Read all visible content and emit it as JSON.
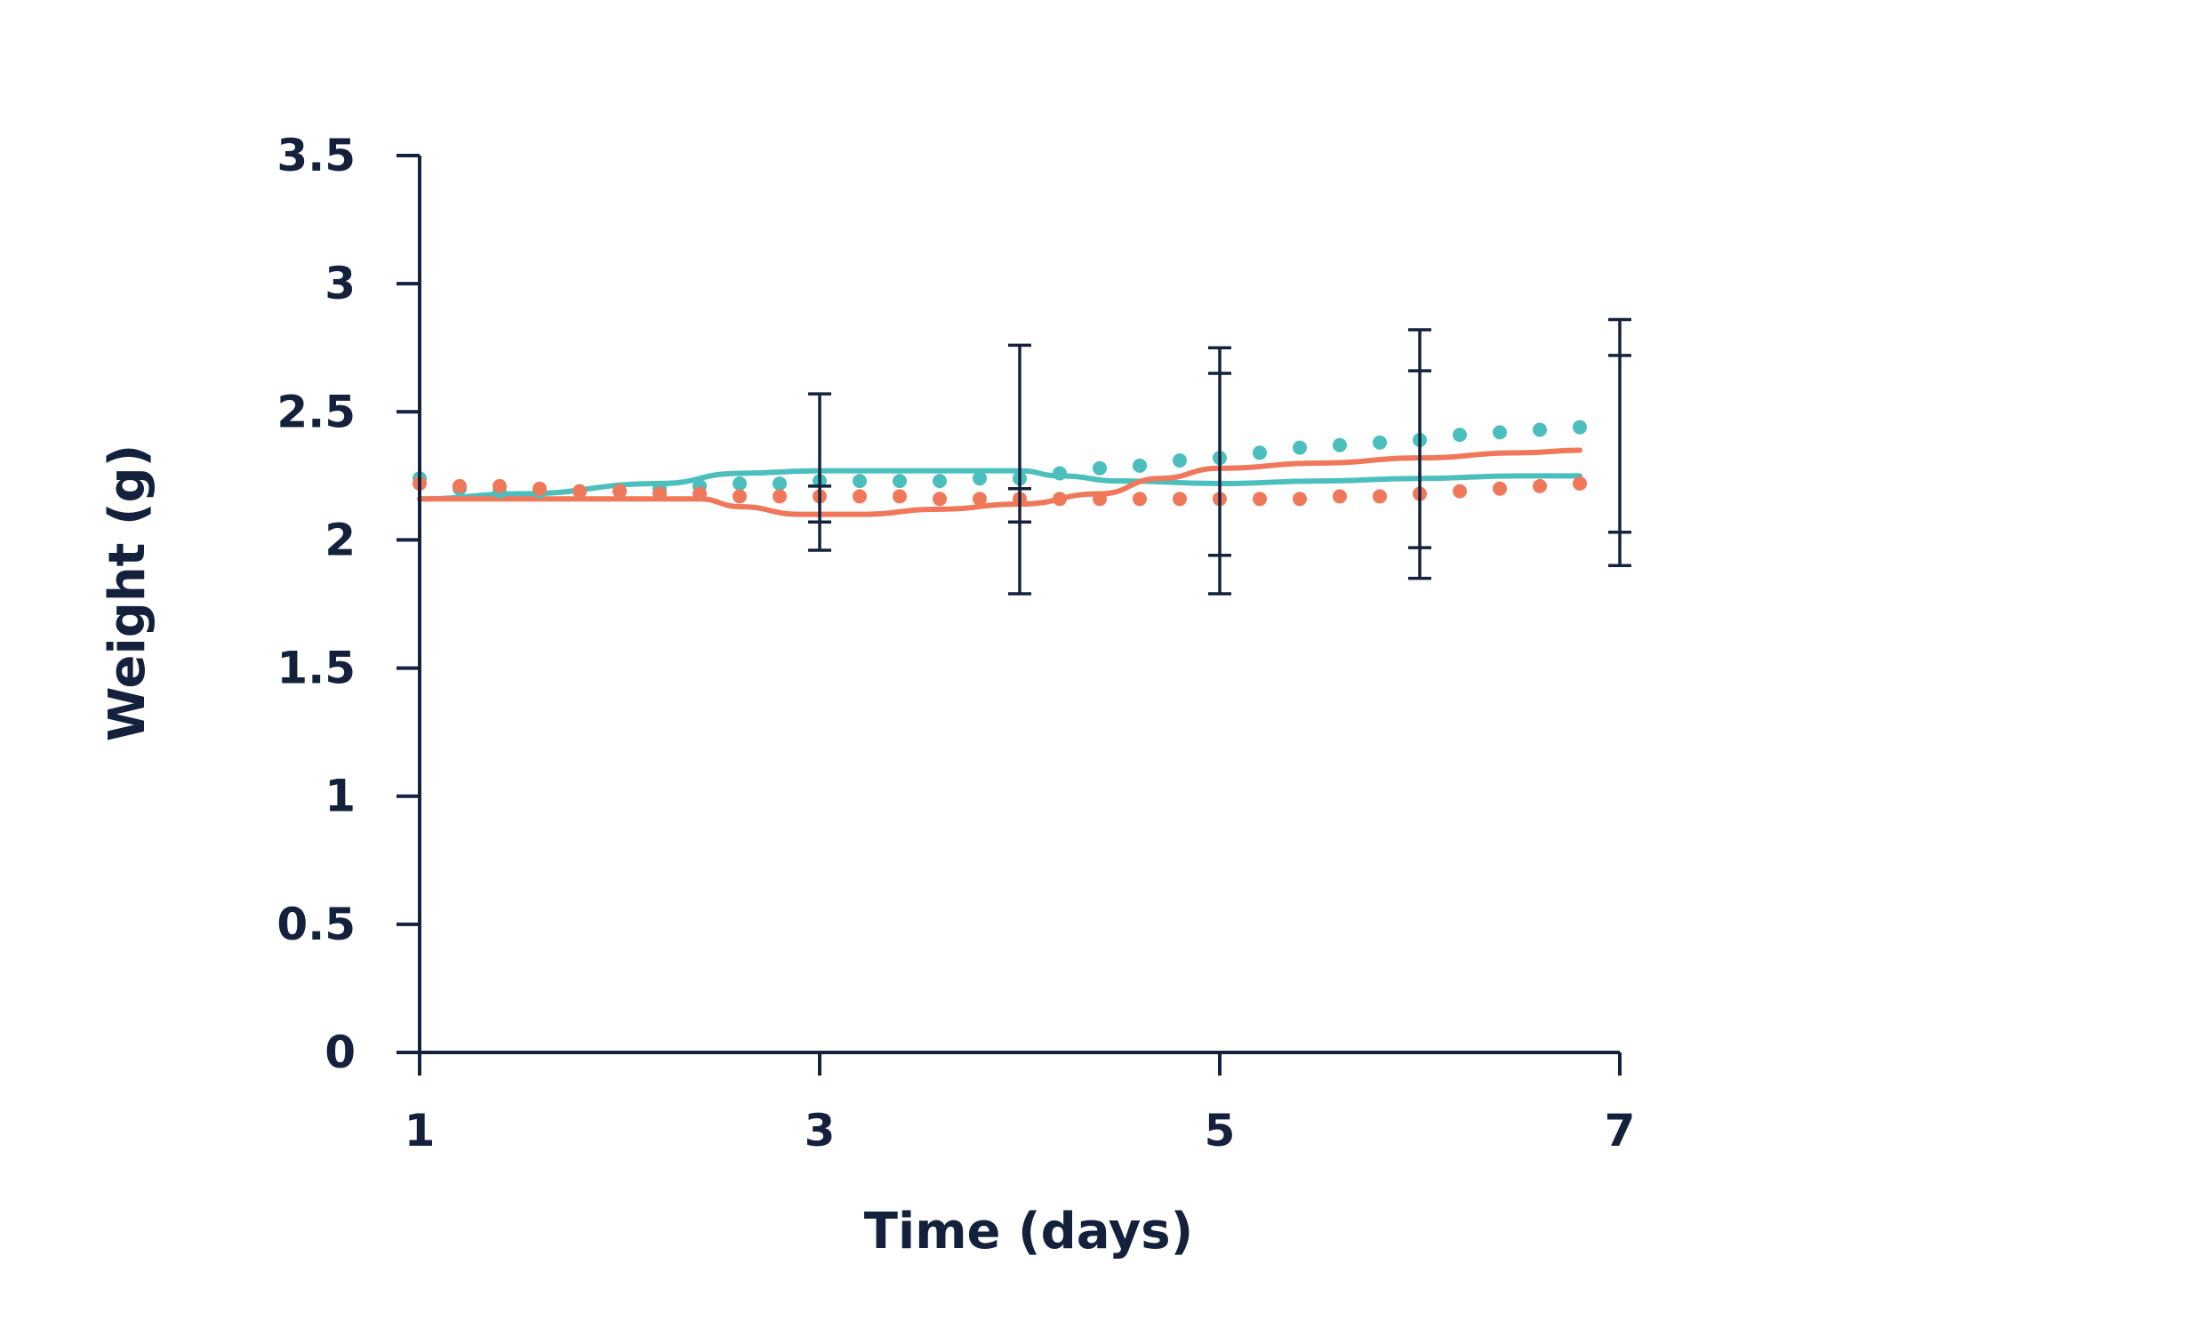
{
  "chart_data": {
    "type": "line",
    "xlabel": "Time (days)",
    "ylabel": "Weight (g)",
    "xlim": [
      1,
      7
    ],
    "ylim": [
      0,
      3.5
    ],
    "x_ticks": [
      "1",
      "3",
      "5",
      "7"
    ],
    "y_ticks": [
      "0",
      "0.5",
      "1",
      "1.5",
      "2",
      "2.5",
      "3",
      "3.5"
    ],
    "grid": false,
    "legend": "none",
    "series": [
      {
        "style": "solid",
        "color": "#4bbfbd",
        "points": [
          [
            1.0,
            2.16
          ],
          [
            1.5,
            2.18
          ],
          [
            2.2,
            2.22
          ],
          [
            2.6,
            2.26
          ],
          [
            3.0,
            2.27
          ],
          [
            3.5,
            2.27
          ],
          [
            4.0,
            2.27
          ],
          [
            4.2,
            2.25
          ],
          [
            4.5,
            2.23
          ],
          [
            5.0,
            2.22
          ],
          [
            5.5,
            2.23
          ],
          [
            6.0,
            2.24
          ],
          [
            6.5,
            2.25
          ],
          [
            6.8,
            2.25
          ]
        ]
      },
      {
        "style": "solid",
        "color": "#f0785a",
        "points": [
          [
            1.0,
            2.16
          ],
          [
            1.5,
            2.16
          ],
          [
            2.0,
            2.16
          ],
          [
            2.4,
            2.16
          ],
          [
            2.6,
            2.13
          ],
          [
            2.9,
            2.1
          ],
          [
            3.2,
            2.1
          ],
          [
            3.6,
            2.12
          ],
          [
            4.0,
            2.14
          ],
          [
            4.4,
            2.18
          ],
          [
            4.7,
            2.24
          ],
          [
            5.0,
            2.28
          ],
          [
            5.5,
            2.3
          ],
          [
            6.0,
            2.32
          ],
          [
            6.5,
            2.34
          ],
          [
            6.8,
            2.35
          ]
        ]
      },
      {
        "style": "dotted",
        "color": "#4bbfbd",
        "points": [
          [
            1.0,
            2.24
          ],
          [
            1.2,
            2.2
          ],
          [
            1.4,
            2.19
          ],
          [
            1.6,
            2.19
          ],
          [
            1.8,
            2.19
          ],
          [
            2.0,
            2.19
          ],
          [
            2.2,
            2.2
          ],
          [
            2.4,
            2.21
          ],
          [
            2.6,
            2.22
          ],
          [
            2.8,
            2.22
          ],
          [
            3.0,
            2.23
          ],
          [
            3.2,
            2.23
          ],
          [
            3.4,
            2.23
          ],
          [
            3.6,
            2.23
          ],
          [
            3.8,
            2.24
          ],
          [
            4.0,
            2.24
          ],
          [
            4.2,
            2.26
          ],
          [
            4.4,
            2.28
          ],
          [
            4.6,
            2.29
          ],
          [
            4.8,
            2.31
          ],
          [
            5.0,
            2.32
          ],
          [
            5.2,
            2.34
          ],
          [
            5.4,
            2.36
          ],
          [
            5.6,
            2.37
          ],
          [
            5.8,
            2.38
          ],
          [
            6.0,
            2.39
          ],
          [
            6.2,
            2.41
          ],
          [
            6.4,
            2.42
          ],
          [
            6.6,
            2.43
          ],
          [
            6.8,
            2.44
          ]
        ]
      },
      {
        "style": "dotted",
        "color": "#f0785a",
        "points": [
          [
            1.0,
            2.22
          ],
          [
            1.2,
            2.21
          ],
          [
            1.4,
            2.21
          ],
          [
            1.6,
            2.2
          ],
          [
            1.8,
            2.19
          ],
          [
            2.0,
            2.19
          ],
          [
            2.2,
            2.18
          ],
          [
            2.4,
            2.18
          ],
          [
            2.6,
            2.17
          ],
          [
            2.8,
            2.17
          ],
          [
            3.0,
            2.17
          ],
          [
            3.2,
            2.17
          ],
          [
            3.4,
            2.17
          ],
          [
            3.6,
            2.16
          ],
          [
            3.8,
            2.16
          ],
          [
            4.0,
            2.16
          ],
          [
            4.2,
            2.16
          ],
          [
            4.4,
            2.16
          ],
          [
            4.6,
            2.16
          ],
          [
            4.8,
            2.16
          ],
          [
            5.0,
            2.16
          ],
          [
            5.2,
            2.16
          ],
          [
            5.4,
            2.16
          ],
          [
            5.6,
            2.17
          ],
          [
            5.8,
            2.17
          ],
          [
            6.0,
            2.18
          ],
          [
            6.2,
            2.19
          ],
          [
            6.4,
            2.2
          ],
          [
            6.6,
            2.21
          ],
          [
            6.8,
            2.22
          ]
        ]
      }
    ],
    "error_bars": [
      {
        "x": 3.0,
        "high": 2.57,
        "low": 1.96,
        "inner_high": 2.21,
        "inner_low": 2.07
      },
      {
        "x": 4.0,
        "high": 2.76,
        "low": 1.79,
        "inner_high": 2.2,
        "inner_low": 2.07
      },
      {
        "x": 5.0,
        "high": 2.75,
        "low": 1.79,
        "inner_high": 2.65,
        "inner_low": 1.94
      },
      {
        "x": 6.0,
        "high": 2.82,
        "low": 1.85,
        "inner_high": 2.66,
        "inner_low": 1.97
      },
      {
        "x": 7.0,
        "high": 2.86,
        "low": 1.9,
        "inner_high": 2.72,
        "inner_low": 2.03
      }
    ]
  }
}
